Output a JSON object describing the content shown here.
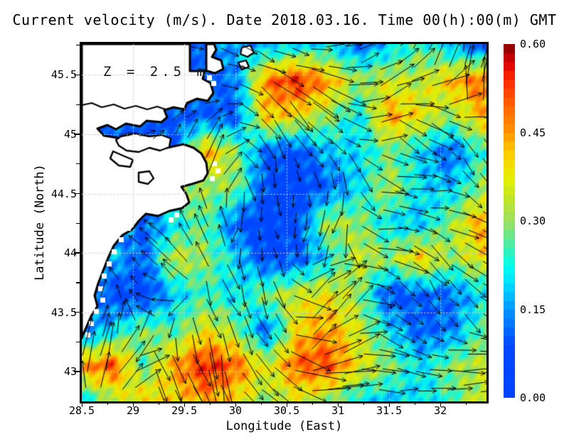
{
  "title": "Current velocity (m/s). Date 2018.03.16. Time 00(h):00(m) GMT",
  "annotation": {
    "text": "Z = 2.5 m"
  },
  "axes": {
    "x": {
      "label": "Longitude (East)",
      "min": 28.5,
      "max": 32.45,
      "tick_values": [
        28.5,
        29,
        29.5,
        30,
        30.5,
        31,
        31.5,
        32
      ],
      "tick_labels": [
        "28.5",
        "29",
        "29.5",
        "30",
        "30.5",
        "31",
        "31.5",
        "32"
      ],
      "minor_step": 0.25
    },
    "y": {
      "label": "Latitude (North)",
      "min": 42.75,
      "max": 45.76,
      "tick_values": [
        43,
        43.5,
        44,
        44.5,
        45,
        45.5
      ],
      "tick_labels": [
        "43",
        "43.5",
        "44",
        "44.5",
        "45",
        "45.5"
      ],
      "minor_step": 0.25
    }
  },
  "colorbar": {
    "min": 0.0,
    "max": 0.6,
    "tick_values": [
      0.6,
      0.45,
      0.3,
      0.15,
      0.0
    ],
    "tick_labels": [
      "0.60",
      "0.45",
      "0.30",
      "0.15",
      "0.00"
    ],
    "stops": [
      [
        0.0,
        "#0043ff"
      ],
      [
        0.09,
        "#0048ff"
      ],
      [
        0.15,
        "#0095ff"
      ],
      [
        0.195,
        "#00e0ff"
      ],
      [
        0.225,
        "#00ffee"
      ],
      [
        0.255,
        "#40f0b0"
      ],
      [
        0.3,
        "#9ce060"
      ],
      [
        0.345,
        "#c8e820"
      ],
      [
        0.375,
        "#e8f000"
      ],
      [
        0.42,
        "#ffc800"
      ],
      [
        0.45,
        "#ff9600"
      ],
      [
        0.495,
        "#ff6400"
      ],
      [
        0.54,
        "#ff2800"
      ],
      [
        0.57,
        "#dc0000"
      ],
      [
        0.6,
        "#7f0000"
      ]
    ]
  },
  "chart_data": {
    "type": "heatmap",
    "title": "Current velocity (m/s). Date 2018.03.16. Time 00(h):00(m) GMT",
    "xlabel": "Longitude (East)",
    "ylabel": "Latitude (North)",
    "units": "m/s",
    "depth_label": "Z = 2.5 m",
    "value_range": [
      0.0,
      0.6
    ],
    "lon_grid": {
      "min": 28.5,
      "max": 32.4,
      "n": 14
    },
    "lat_grid": {
      "min": 42.75,
      "max": 45.75,
      "n": 11,
      "order": "north_to_south"
    },
    "speed": [
      [
        null,
        null,
        null,
        null,
        0.1,
        0.18,
        0.15,
        0.2,
        0.2,
        0.12,
        0.18,
        0.27,
        0.17,
        0.08
      ],
      [
        null,
        null,
        null,
        null,
        null,
        0.12,
        0.48,
        0.55,
        0.45,
        0.3,
        0.35,
        0.33,
        0.42,
        0.5
      ],
      [
        null,
        null,
        null,
        null,
        null,
        0.1,
        0.42,
        0.38,
        0.3,
        0.2,
        0.45,
        0.38,
        0.3,
        0.42
      ],
      [
        null,
        null,
        null,
        null,
        0.45,
        0.3,
        0.1,
        0.07,
        0.18,
        0.2,
        0.28,
        0.2,
        0.1,
        0.25
      ],
      [
        null,
        null,
        0.1,
        0.35,
        0.3,
        0.3,
        0.08,
        0.05,
        0.1,
        0.2,
        0.33,
        0.2,
        0.18,
        0.3
      ],
      [
        null,
        0.15,
        0.1,
        0.2,
        0.28,
        0.1,
        0.05,
        0.08,
        0.33,
        0.3,
        0.2,
        0.18,
        0.3,
        0.45
      ],
      [
        0.1,
        0.18,
        0.1,
        0.35,
        0.3,
        0.2,
        0.07,
        0.1,
        0.2,
        0.35,
        0.3,
        0.42,
        0.3,
        0.38
      ],
      [
        0.2,
        0.07,
        0.05,
        0.18,
        0.25,
        0.2,
        0.3,
        0.35,
        0.38,
        0.3,
        0.08,
        0.1,
        0.12,
        0.2
      ],
      [
        0.1,
        0.2,
        0.3,
        0.25,
        0.38,
        0.3,
        0.1,
        0.4,
        0.45,
        0.35,
        0.2,
        0.1,
        0.12,
        0.28
      ],
      [
        0.45,
        0.52,
        0.25,
        0.45,
        0.55,
        0.5,
        0.35,
        0.5,
        0.52,
        0.38,
        0.3,
        0.2,
        0.3,
        0.33
      ],
      [
        0.2,
        0.3,
        0.42,
        0.38,
        0.45,
        0.38,
        0.3,
        0.35,
        0.3,
        0.2,
        0.18,
        0.2,
        0.25,
        0.35
      ]
    ],
    "quiver_direction_deg": {
      "note": "0 = east, positive counterclockwise (north up)",
      "lon_grid": {
        "min": 28.65,
        "max": 32.25,
        "n": 13
      },
      "lat_grid": {
        "min": 42.9,
        "max": 45.6,
        "n": 10,
        "order": "north_to_south"
      },
      "rows": [
        [
          5,
          0,
          0,
          -10,
          -15,
          -25,
          -20,
          -5,
          10,
          25,
          45,
          70,
          80
        ],
        [
          0,
          0,
          20,
          30,
          0,
          -40,
          -50,
          -45,
          -25,
          30,
          0,
          -20,
          85
        ],
        [
          0,
          0,
          45,
          60,
          40,
          -50,
          -60,
          -50,
          -30,
          40,
          -55,
          -30,
          -60
        ],
        [
          90,
          90,
          90,
          70,
          50,
          -70,
          -90,
          -60,
          -80,
          -45,
          0,
          -20,
          -45
        ],
        [
          100,
          120,
          135,
          110,
          90,
          -100,
          -80,
          -100,
          -120,
          0,
          -10,
          0,
          -30
        ],
        [
          90,
          130,
          140,
          120,
          100,
          -90,
          -70,
          -110,
          -90,
          0,
          -20,
          -45,
          -20
        ],
        [
          80,
          140,
          150,
          130,
          -60,
          -80,
          -60,
          40,
          30,
          -30,
          -45,
          -60,
          -30
        ],
        [
          70,
          100,
          160,
          -70,
          -60,
          -70,
          -50,
          45,
          50,
          -45,
          -30,
          -50,
          -45
        ],
        [
          80,
          60,
          -80,
          -70,
          -80,
          -60,
          -40,
          40,
          20,
          -20,
          -30,
          -20,
          0
        ],
        [
          90,
          45,
          -60,
          -50,
          -70,
          -50,
          -30,
          0,
          10,
          -10,
          0,
          0,
          10
        ]
      ]
    }
  }
}
